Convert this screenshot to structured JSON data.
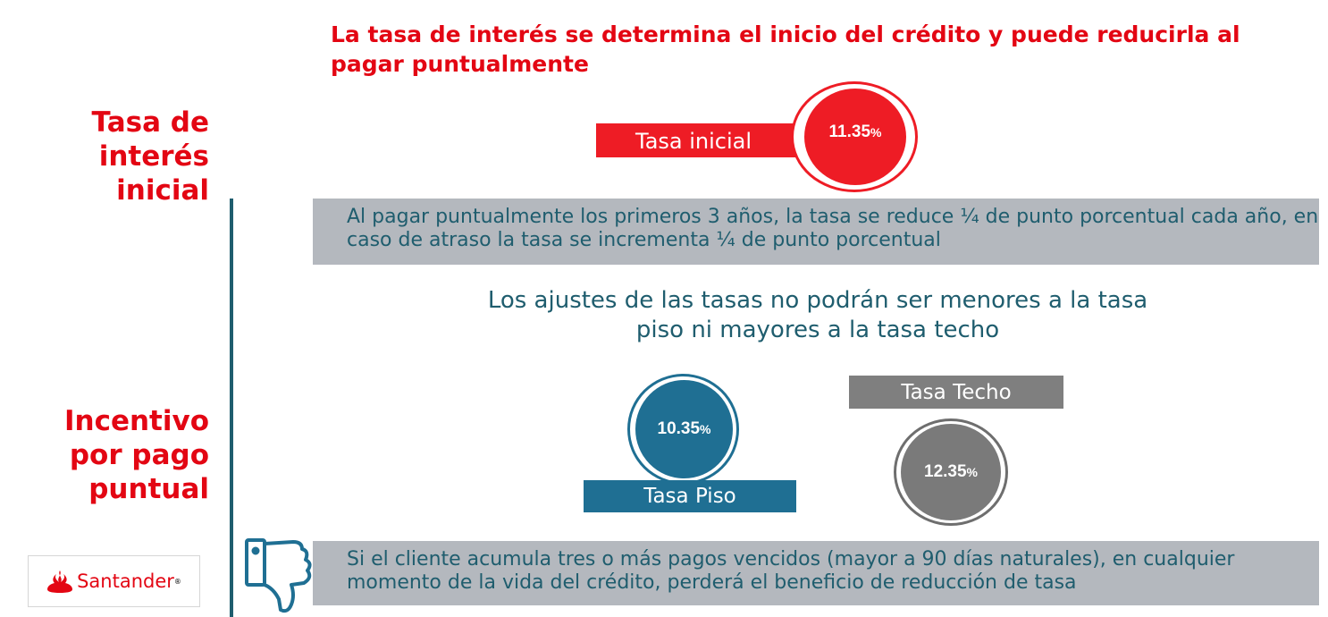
{
  "headline": "La tasa de interés se determina el inicio del crédito y puede reducirla al pagar puntualmente",
  "sidebar": {
    "section1": "Tasa de interés inicial",
    "section2": "Incentivo por pago puntual"
  },
  "initial_rate": {
    "label": "Tasa inicial",
    "value": "11.35",
    "unit": "%"
  },
  "band1_text": "Al pagar puntualmente los primeros 3 años, la tasa se reduce ¼ de punto porcentual cada año, en caso de atraso la tasa se incrementa ¼ de punto porcentual",
  "limits_text": "Los ajustes de las tasas no podrán ser menores a la tasa piso ni mayores a la tasa techo",
  "floor_rate": {
    "label": "Tasa Piso",
    "value": "10.35",
    "unit": "%"
  },
  "ceiling_rate": {
    "label": "Tasa Techo",
    "value": "12.35",
    "unit": "%"
  },
  "band2_text": "Si el cliente acumula tres o más pagos vencidos (mayor a 90 días naturales), en cualquier momento de la vida del crédito, perderá el beneficio de reducción de tasa",
  "logo": {
    "text": "Santander",
    "mark": "®"
  },
  "colors": {
    "red": "#e30613",
    "teal": "#1f5d6e",
    "blue": "#1f6f93",
    "grey": "#7f7f7f",
    "band": "#b4b8be"
  },
  "icons": [
    "flame-logo-icon",
    "thumbs-down-icon"
  ]
}
